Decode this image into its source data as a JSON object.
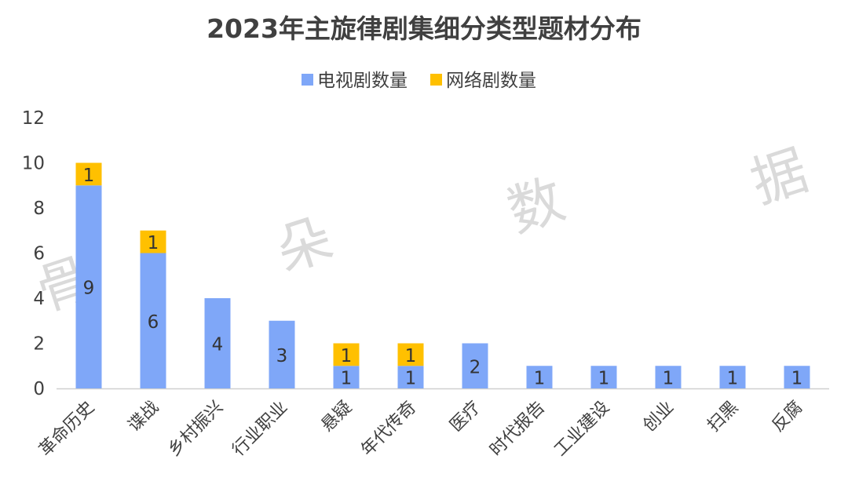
{
  "chart_data": {
    "type": "bar",
    "stacked": true,
    "title": "2023年主旋律剧集细分类型题材分布",
    "categories": [
      "革命历史",
      "谍战",
      "乡村振兴",
      "行业职业",
      "悬疑",
      "年代传奇",
      "医疗",
      "时代报告",
      "工业建设",
      "创业",
      "扫黑",
      "反腐"
    ],
    "series": [
      {
        "name": "电视剧数量",
        "color": "#7fa7f8",
        "values": [
          9,
          6,
          4,
          3,
          1,
          1,
          2,
          1,
          1,
          1,
          1,
          1
        ]
      },
      {
        "name": "网络剧数量",
        "color": "#ffc000",
        "values": [
          1,
          1,
          0,
          0,
          1,
          1,
          0,
          0,
          0,
          0,
          0,
          0
        ]
      }
    ],
    "ylim": [
      0,
      12
    ],
    "yticks": [
      "0",
      "2",
      "4",
      "6",
      "8",
      "10",
      "12"
    ],
    "legend_position": "top",
    "grid": false
  },
  "watermark": [
    "骨",
    "朵",
    "数",
    "据"
  ]
}
